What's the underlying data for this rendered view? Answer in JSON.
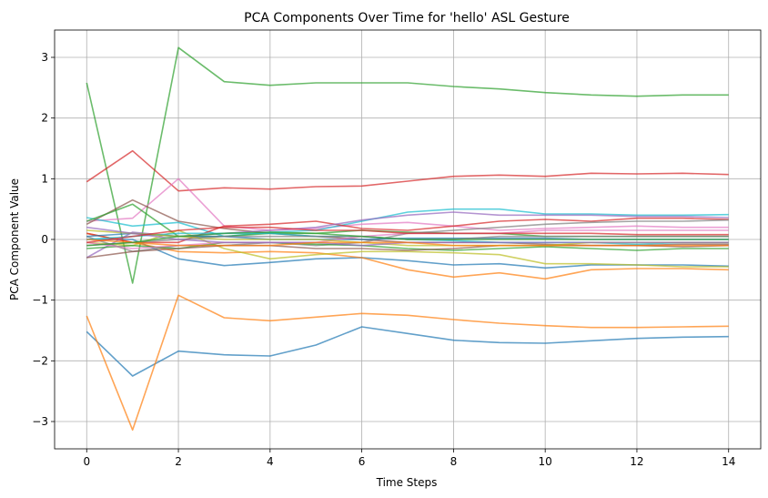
{
  "chart_data": {
    "type": "line",
    "title": "PCA Components Over Time for 'hello' ASL Gesture",
    "xlabel": "Time Steps",
    "ylabel": "PCA Component Value",
    "xlim": [
      -0.7,
      14.7
    ],
    "ylim": [
      -3.45,
      3.45
    ],
    "xticks": [
      0,
      2,
      4,
      6,
      8,
      10,
      12,
      14
    ],
    "yticks": [
      -3,
      -2,
      -1,
      0,
      1,
      2,
      3
    ],
    "grid": true,
    "legend": "none",
    "x": [
      0,
      1,
      2,
      3,
      4,
      5,
      6,
      7,
      8,
      9,
      10,
      11,
      12,
      13,
      14
    ],
    "series": [
      {
        "color": "#2ca02c",
        "values": [
          2.58,
          -0.72,
          3.16,
          2.6,
          2.54,
          2.58,
          2.58,
          2.58,
          2.52,
          2.48,
          2.42,
          2.38,
          2.36,
          2.38,
          2.38
        ]
      },
      {
        "color": "#d62728",
        "values": [
          0.95,
          1.46,
          0.8,
          0.85,
          0.83,
          0.87,
          0.88,
          0.96,
          1.04,
          1.06,
          1.04,
          1.09,
          1.08,
          1.09,
          1.07
        ]
      },
      {
        "color": "#1f77b4",
        "values": [
          -1.52,
          -2.25,
          -1.84,
          -1.9,
          -1.92,
          -1.74,
          -1.44,
          -1.55,
          -1.66,
          -1.7,
          -1.71,
          -1.67,
          -1.63,
          -1.61,
          -1.6
        ]
      },
      {
        "color": "#ff7f0e",
        "values": [
          -1.26,
          -3.14,
          -0.92,
          -1.29,
          -1.34,
          -1.28,
          -1.22,
          -1.25,
          -1.32,
          -1.38,
          -1.42,
          -1.45,
          -1.45,
          -1.44,
          -1.43
        ]
      },
      {
        "color": "#e377c2",
        "values": [
          0.3,
          0.35,
          1.0,
          0.22,
          0.15,
          0.18,
          0.25,
          0.28,
          0.22,
          0.15,
          0.18,
          0.2,
          0.22,
          0.2,
          0.2
        ]
      },
      {
        "color": "#17becf",
        "values": [
          0.36,
          0.22,
          0.28,
          0.05,
          0.12,
          0.15,
          0.3,
          0.45,
          0.5,
          0.5,
          0.42,
          0.42,
          0.4,
          0.4,
          0.41
        ]
      },
      {
        "color": "#8c564b",
        "values": [
          0.25,
          0.65,
          0.3,
          0.18,
          0.1,
          0.05,
          0.0,
          -0.05,
          -0.05,
          -0.05,
          -0.08,
          -0.1,
          -0.1,
          -0.08,
          -0.08
        ]
      },
      {
        "color": "#2ca02c",
        "values": [
          0.3,
          0.58,
          0.05,
          0.05,
          0.1,
          0.1,
          0.15,
          0.12,
          0.1,
          0.1,
          0.05,
          0.05,
          0.05,
          0.05,
          0.05
        ]
      },
      {
        "color": "#1f77b4",
        "values": [
          0.0,
          0.0,
          -0.32,
          -0.43,
          -0.38,
          -0.32,
          -0.3,
          -0.35,
          -0.42,
          -0.4,
          -0.47,
          -0.42,
          -0.42,
          -0.42,
          -0.44
        ]
      },
      {
        "color": "#ff7f0e",
        "values": [
          0.1,
          -0.05,
          -0.2,
          -0.22,
          -0.2,
          -0.22,
          -0.3,
          -0.5,
          -0.62,
          -0.55,
          -0.65,
          -0.5,
          -0.48,
          -0.48,
          -0.5
        ]
      },
      {
        "color": "#bcbd22",
        "values": [
          -0.05,
          -0.1,
          0.15,
          -0.15,
          -0.32,
          -0.25,
          -0.2,
          -0.2,
          -0.22,
          -0.25,
          -0.4,
          -0.4,
          -0.42,
          -0.45,
          -0.45
        ]
      },
      {
        "color": "#d62728",
        "values": [
          0.1,
          -0.05,
          -0.05,
          0.22,
          0.25,
          0.3,
          0.18,
          0.15,
          0.22,
          0.3,
          0.33,
          0.3,
          0.35,
          0.35,
          0.33
        ]
      },
      {
        "color": "#9467bd",
        "values": [
          -0.3,
          0.12,
          0.05,
          0.1,
          0.15,
          0.2,
          0.32,
          0.4,
          0.45,
          0.4,
          0.4,
          0.4,
          0.38,
          0.38,
          0.36
        ]
      },
      {
        "color": "#7f7f7f",
        "values": [
          0.05,
          -0.2,
          -0.1,
          -0.1,
          -0.05,
          -0.1,
          -0.05,
          0.1,
          0.15,
          0.2,
          0.25,
          0.28,
          0.3,
          0.3,
          0.32
        ]
      },
      {
        "color": "#2ca02c",
        "values": [
          -0.15,
          -0.1,
          -0.15,
          -0.05,
          -0.05,
          -0.08,
          -0.1,
          -0.15,
          -0.18,
          -0.15,
          -0.12,
          -0.15,
          -0.18,
          -0.15,
          -0.15
        ]
      },
      {
        "color": "#8c564b",
        "values": [
          -0.3,
          -0.2,
          -0.15,
          -0.1,
          -0.1,
          -0.15,
          -0.15,
          -0.18,
          -0.15,
          -0.1,
          -0.1,
          -0.1,
          -0.1,
          -0.12,
          -0.1
        ]
      },
      {
        "color": "#1f77b4",
        "values": [
          0.05,
          0.1,
          0.05,
          0.05,
          0.0,
          0.0,
          0.0,
          0.02,
          0.02,
          0.02,
          0.02,
          0.0,
          0.0,
          0.0,
          0.0
        ]
      },
      {
        "color": "#17becf",
        "values": [
          0.0,
          0.05,
          0.1,
          0.1,
          0.1,
          0.05,
          0.05,
          0.0,
          -0.02,
          -0.05,
          -0.05,
          -0.05,
          -0.08,
          -0.05,
          -0.05
        ]
      },
      {
        "color": "#e377c2",
        "values": [
          -0.05,
          -0.15,
          -0.1,
          -0.05,
          -0.05,
          -0.05,
          0.05,
          0.1,
          0.1,
          0.1,
          0.15,
          0.15,
          0.15,
          0.15,
          0.15
        ]
      },
      {
        "color": "#bcbd22",
        "values": [
          0.15,
          0.1,
          0.05,
          0.0,
          0.0,
          0.0,
          -0.05,
          -0.1,
          -0.1,
          -0.1,
          -0.1,
          -0.05,
          -0.05,
          -0.05,
          -0.05
        ]
      },
      {
        "color": "#7f7f7f",
        "values": [
          -0.1,
          -0.05,
          0.0,
          0.05,
          0.05,
          0.05,
          0.05,
          0.0,
          0.0,
          0.05,
          0.05,
          0.05,
          0.05,
          0.05,
          0.05
        ]
      },
      {
        "color": "#9467bd",
        "values": [
          0.2,
          0.1,
          0.0,
          -0.05,
          -0.05,
          -0.05,
          -0.1,
          -0.05,
          -0.05,
          -0.05,
          -0.05,
          -0.05,
          -0.05,
          -0.05,
          -0.05
        ]
      },
      {
        "color": "#d62728",
        "values": [
          -0.05,
          0.05,
          0.15,
          0.2,
          0.2,
          0.15,
          0.15,
          0.1,
          0.1,
          0.1,
          0.1,
          0.1,
          0.08,
          0.08,
          0.08
        ]
      },
      {
        "color": "#ff7f0e",
        "values": [
          0.0,
          -0.05,
          -0.1,
          -0.1,
          -0.1,
          -0.05,
          -0.05,
          -0.05,
          -0.1,
          -0.1,
          -0.1,
          -0.1,
          -0.1,
          -0.1,
          -0.1
        ]
      },
      {
        "color": "#2ca02c",
        "values": [
          -0.1,
          -0.05,
          0.05,
          0.1,
          0.12,
          0.1,
          0.05,
          0.0,
          0.0,
          0.0,
          0.0,
          0.0,
          0.0,
          0.0,
          0.0
        ]
      }
    ]
  }
}
